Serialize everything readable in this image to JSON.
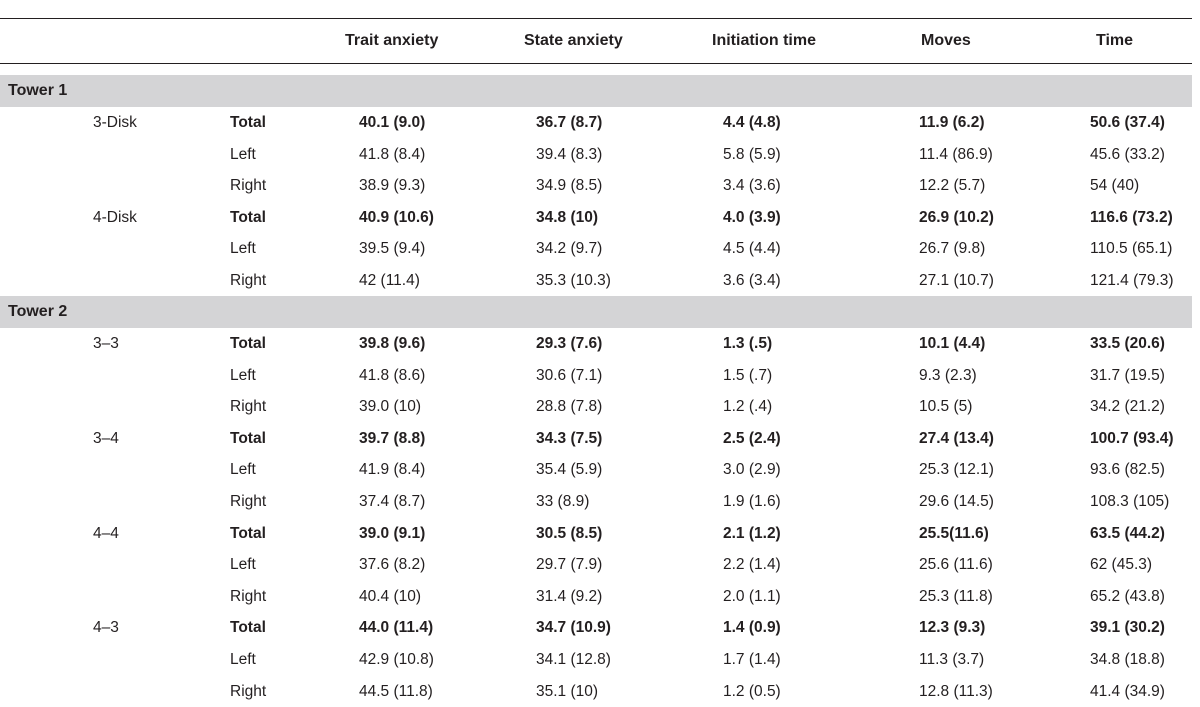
{
  "header": {
    "col1": "Trait anxiety",
    "col2": "State anxiety",
    "col3": "Initiation time",
    "col4": "Moves",
    "col5": "Time"
  },
  "sections": [
    {
      "label": "Tower 1",
      "rows": [
        {
          "cond": "3-Disk",
          "sub": "Total",
          "v": [
            "40.1 (9.0)",
            "36.7 (8.7)",
            "4.4 (4.8)",
            "11.9 (6.2)",
            "50.6 (37.4)"
          ]
        },
        {
          "cond": "",
          "sub": "Left",
          "v": [
            "41.8 (8.4)",
            "39.4 (8.3)",
            "5.8 (5.9)",
            "11.4 (86.9)",
            "45.6 (33.2)"
          ]
        },
        {
          "cond": "",
          "sub": "Right",
          "v": [
            "38.9 (9.3)",
            "34.9 (8.5)",
            "3.4 (3.6)",
            "12.2 (5.7)",
            "54 (40)"
          ]
        },
        {
          "cond": "4-Disk",
          "sub": "Total",
          "v": [
            "40.9 (10.6)",
            "34.8 (10)",
            "4.0 (3.9)",
            "26.9 (10.2)",
            "116.6 (73.2)"
          ]
        },
        {
          "cond": "",
          "sub": "Left",
          "v": [
            "39.5 (9.4)",
            "34.2 (9.7)",
            "4.5 (4.4)",
            "26.7 (9.8)",
            "110.5 (65.1)"
          ]
        },
        {
          "cond": "",
          "sub": "Right",
          "v": [
            "42 (11.4)",
            "35.3 (10.3)",
            "3.6 (3.4)",
            "27.1 (10.7)",
            "121.4 (79.3)"
          ]
        }
      ]
    },
    {
      "label": "Tower 2",
      "rows": [
        {
          "cond": "3–3",
          "sub": "Total",
          "v": [
            "39.8 (9.6)",
            "29.3 (7.6)",
            "1.3 (.5)",
            "10.1 (4.4)",
            "33.5 (20.6)"
          ]
        },
        {
          "cond": "",
          "sub": "Left",
          "v": [
            "41.8 (8.6)",
            "30.6 (7.1)",
            "1.5 (.7)",
            "9.3 (2.3)",
            "31.7 (19.5)"
          ]
        },
        {
          "cond": "",
          "sub": "Right",
          "v": [
            "39.0 (10)",
            "28.8 (7.8)",
            "1.2 (.4)",
            "10.5 (5)",
            "34.2 (21.2)"
          ]
        },
        {
          "cond": "3–4",
          "sub": "Total",
          "v": [
            "39.7 (8.8)",
            "34.3 (7.5)",
            "2.5 (2.4)",
            "27.4 (13.4)",
            "100.7 (93.4)"
          ]
        },
        {
          "cond": "",
          "sub": "Left",
          "v": [
            "41.9 (8.4)",
            "35.4 (5.9)",
            "3.0 (2.9)",
            "25.3 (12.1)",
            "93.6 (82.5)"
          ]
        },
        {
          "cond": "",
          "sub": "Right",
          "v": [
            "37.4 (8.7)",
            "33 (8.9)",
            "1.9 (1.6)",
            "29.6 (14.5)",
            "108.3 (105)"
          ]
        },
        {
          "cond": "4–4",
          "sub": "Total",
          "v": [
            "39.0 (9.1)",
            "30.5 (8.5)",
            "2.1 (1.2)",
            "25.5(11.6)",
            "63.5 (44.2)"
          ]
        },
        {
          "cond": "",
          "sub": "Left",
          "v": [
            "37.6 (8.2)",
            "29.7 (7.9)",
            "2.2 (1.4)",
            "25.6 (11.6)",
            "62 (45.3)"
          ]
        },
        {
          "cond": "",
          "sub": "Right",
          "v": [
            "40.4 (10)",
            "31.4 (9.2)",
            "2.0 (1.1)",
            "25.3 (11.8)",
            "65.2 (43.8)"
          ]
        },
        {
          "cond": "4–3",
          "sub": "Total",
          "v": [
            "44.0 (11.4)",
            "34.7 (10.9)",
            "1.4 (0.9)",
            "12.3 (9.3)",
            "39.1 (30.2)"
          ]
        },
        {
          "cond": "",
          "sub": "Left",
          "v": [
            "42.9 (10.8)",
            "34.1 (12.8)",
            "1.7 (1.4)",
            "11.3 (3.7)",
            "34.8 (18.8)"
          ]
        },
        {
          "cond": "",
          "sub": "Right",
          "v": [
            "44.5 (11.8)",
            "35.1 (10)",
            "1.2 (0.5)",
            "12.8 (11.3)",
            "41.4 (34.9)"
          ]
        }
      ]
    }
  ]
}
